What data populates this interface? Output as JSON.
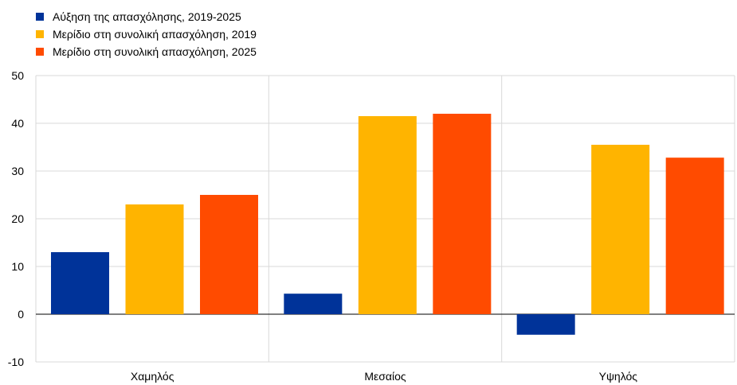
{
  "chart_data": {
    "type": "bar",
    "categories": [
      "Χαμηλός",
      "Μεσαίος",
      "Υψηλός"
    ],
    "series": [
      {
        "name": "Αύξηση της απασχόλησης, 2019-2025",
        "color": "#003399",
        "values": [
          13,
          4.3,
          -4.3
        ]
      },
      {
        "name": "Μερίδιο στη συνολική απασχόληση, 2019",
        "color": "#FFB400",
        "values": [
          23,
          41.5,
          35.5
        ]
      },
      {
        "name": "Μερίδιο στη συνολική απασχόληση, 2025",
        "color": "#FF4B00",
        "values": [
          25,
          42,
          32.8
        ]
      }
    ],
    "ylim": [
      -10,
      50
    ],
    "yticks": [
      "-10",
      "0",
      "10",
      "20",
      "30",
      "40",
      "50"
    ],
    "grid": true,
    "legend_position": "top-left"
  }
}
